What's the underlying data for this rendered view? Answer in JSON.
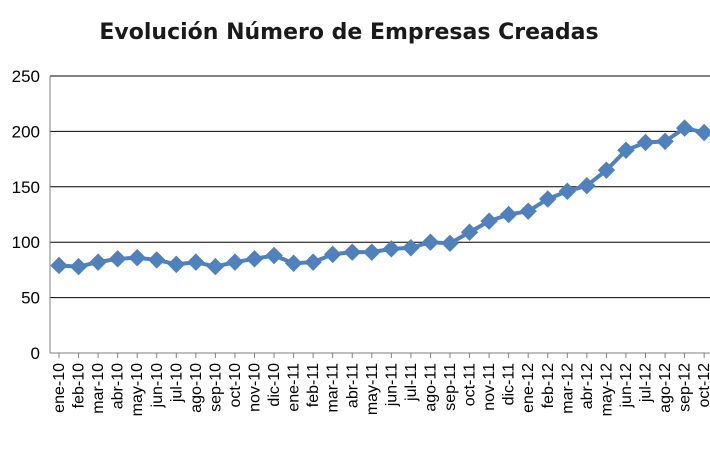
{
  "chart_data": {
    "type": "line",
    "title": "Evolución Número de Empresas Creadas",
    "xlabel": "",
    "ylabel": "",
    "ylim": [
      0,
      250
    ],
    "yticks": [
      0,
      50,
      100,
      150,
      200,
      250
    ],
    "y_tick_labels": [
      "0",
      "50",
      "100",
      "150",
      "200",
      "250"
    ],
    "grid": true,
    "legend": "none",
    "categories": [
      "ene-10",
      "feb-10",
      "mar-10",
      "abr-10",
      "may-10",
      "jun-10",
      "jul-10",
      "ago-10",
      "sep-10",
      "oct-10",
      "nov-10",
      "dic-10",
      "ene-11",
      "feb-11",
      "mar-11",
      "abr-11",
      "may-11",
      "jun-11",
      "jul-11",
      "ago-11",
      "sep-11",
      "oct-11",
      "nov-11",
      "dic-11",
      "ene-12",
      "feb-12",
      "mar-12",
      "abr-12",
      "may-12",
      "jun-12",
      "jul-12",
      "ago-12",
      "sep-12",
      "oct-12"
    ],
    "series": [
      {
        "color": "#4F81BD",
        "marker": "diamond",
        "values": [
          79,
          78,
          82,
          85,
          86,
          84,
          80,
          82,
          78,
          82,
          85,
          88,
          81,
          82,
          89,
          91,
          91,
          94,
          95,
          100,
          99,
          109,
          119,
          125,
          128,
          139,
          146,
          151,
          165,
          183,
          190,
          191,
          203,
          199
        ]
      }
    ]
  }
}
